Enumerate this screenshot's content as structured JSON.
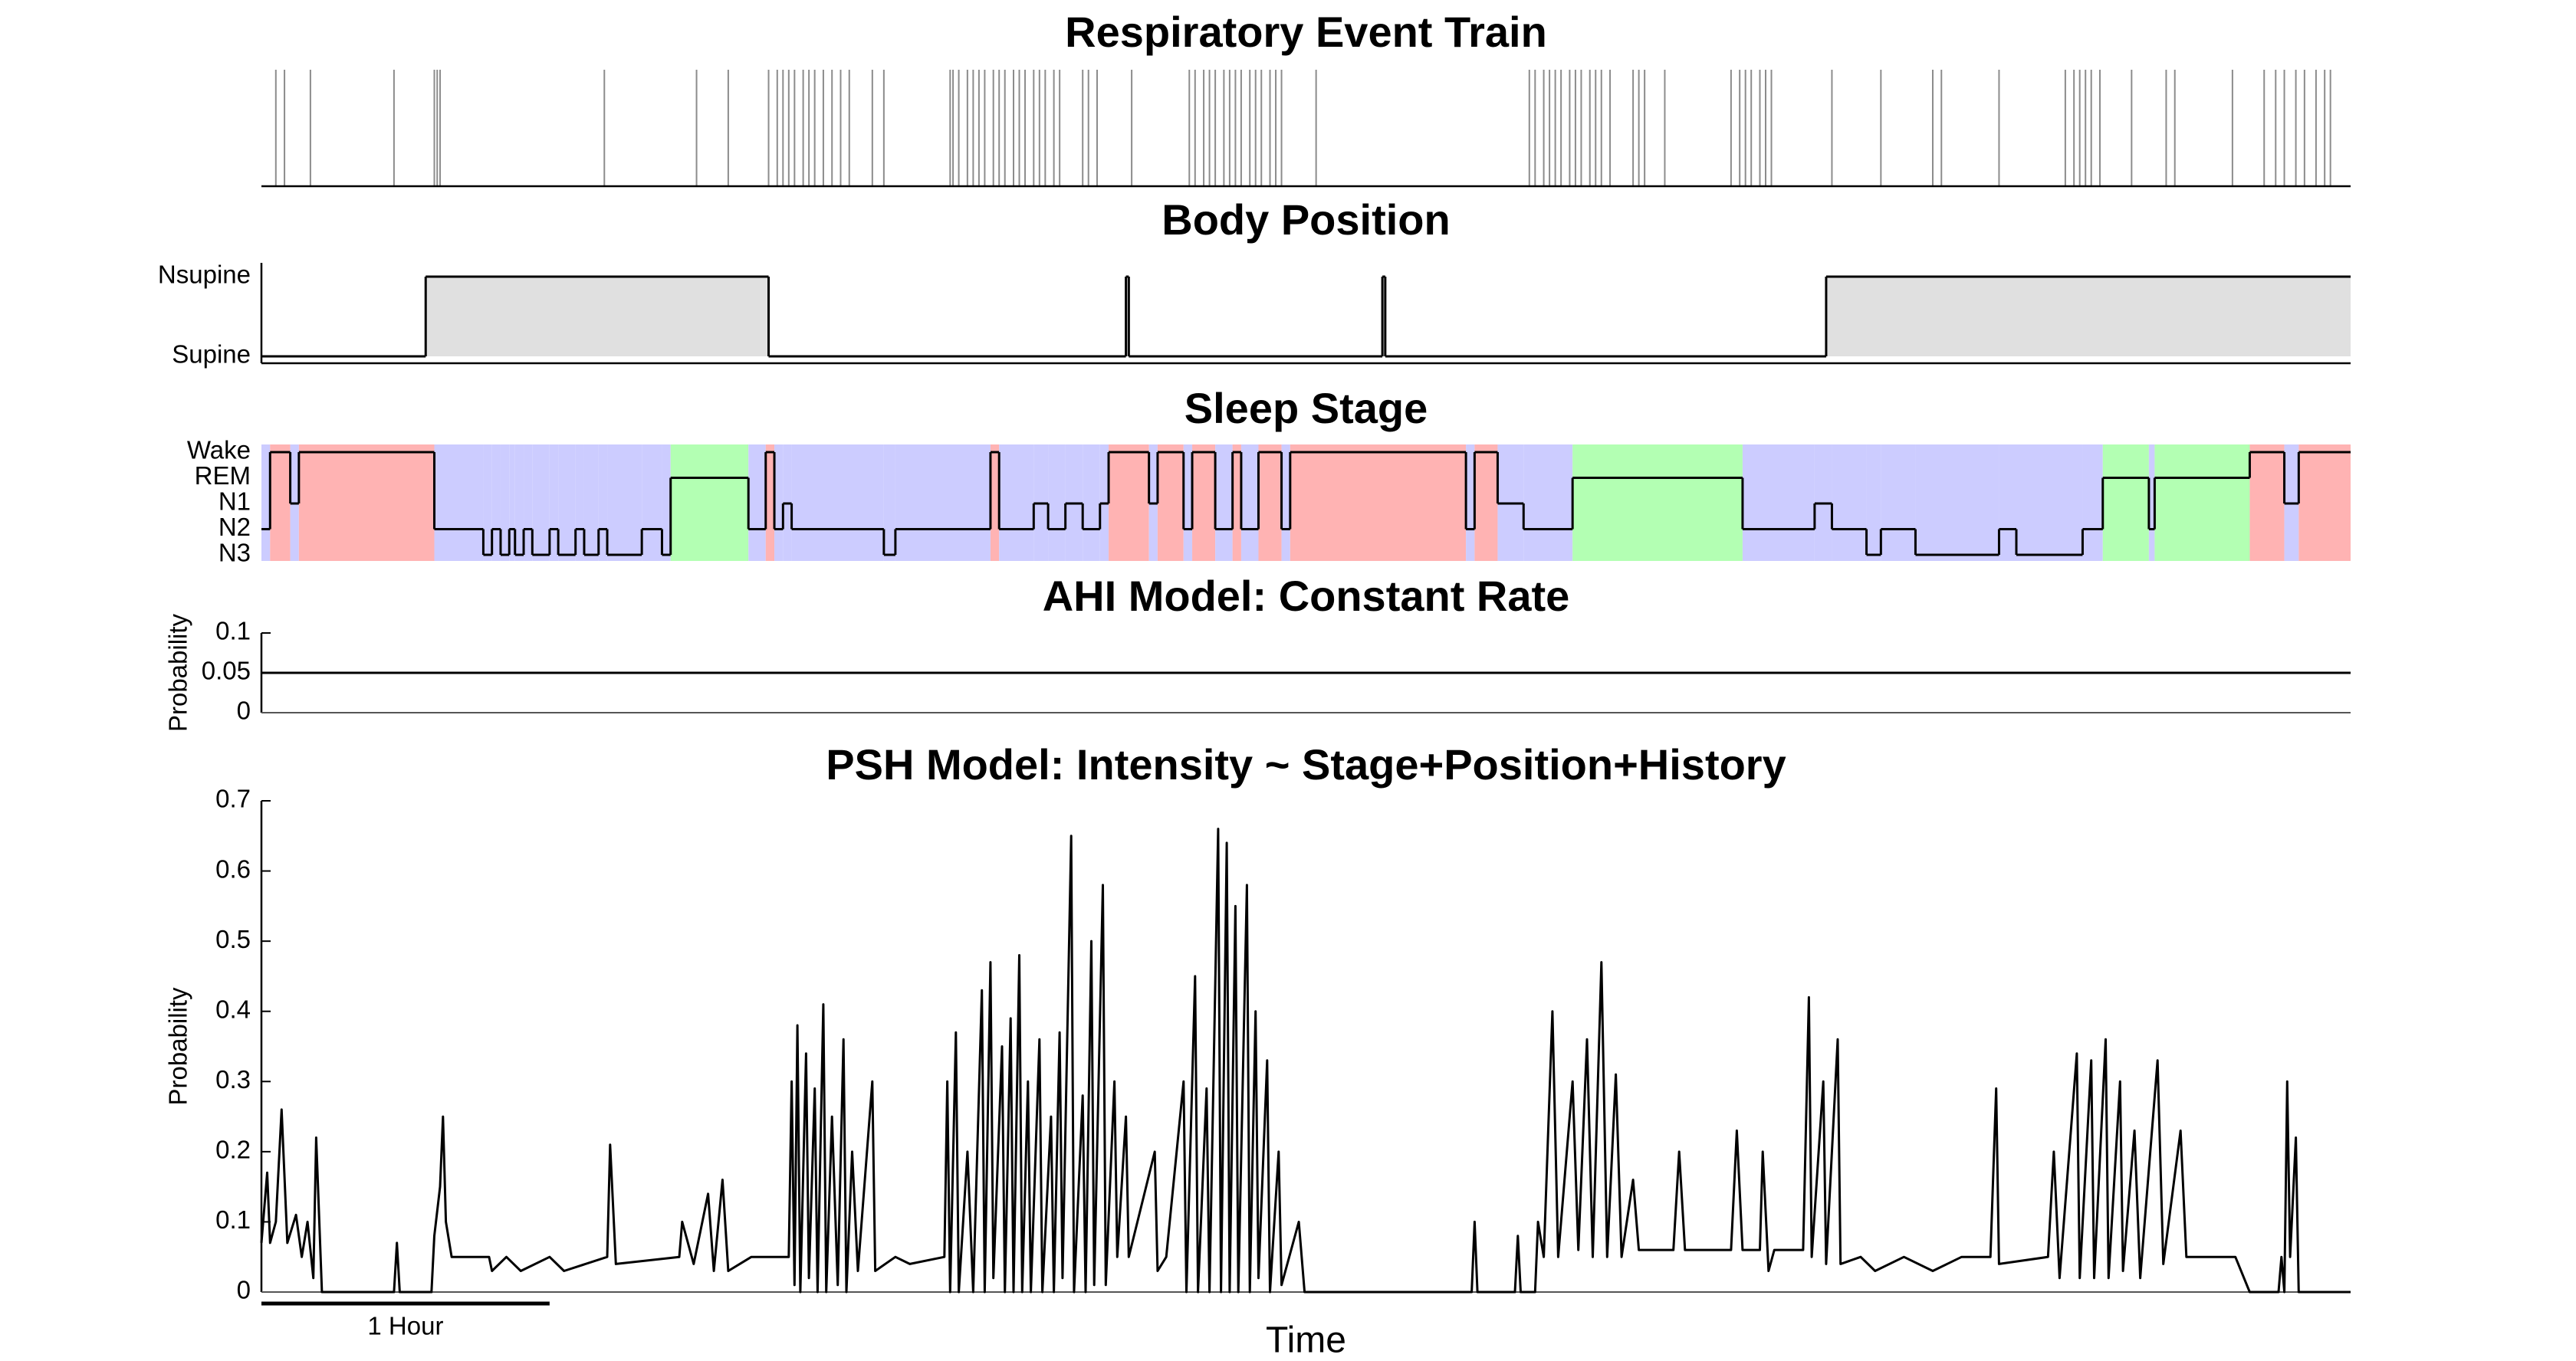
{
  "chart_data": [
    {
      "type": "event",
      "title": "Respiratory Event Train",
      "xlim": [
        0,
        7.25
      ],
      "color": "#8c8c8c",
      "x": [
        0.05,
        0.08,
        0.17,
        0.46,
        0.6,
        0.61,
        0.62,
        1.19,
        1.51,
        1.62,
        1.76,
        1.79,
        1.81,
        1.83,
        1.85,
        1.88,
        1.9,
        1.92,
        1.95,
        1.98,
        2.01,
        2.04,
        2.12,
        2.16,
        2.39,
        2.4,
        2.42,
        2.45,
        2.47,
        2.49,
        2.51,
        2.54,
        2.56,
        2.58,
        2.61,
        2.63,
        2.65,
        2.68,
        2.7,
        2.72,
        2.75,
        2.77,
        2.85,
        2.87,
        2.9,
        3.02,
        3.22,
        3.24,
        3.27,
        3.29,
        3.31,
        3.34,
        3.36,
        3.38,
        3.4,
        3.43,
        3.45,
        3.47,
        3.5,
        3.52,
        3.54,
        3.66,
        4.4,
        4.42,
        4.45,
        4.47,
        4.49,
        4.51,
        4.54,
        4.56,
        4.58,
        4.61,
        4.63,
        4.65,
        4.68,
        4.76,
        4.78,
        4.8,
        4.87,
        5.1,
        5.13,
        5.15,
        5.17,
        5.2,
        5.22,
        5.24,
        5.45,
        5.62,
        5.8,
        5.83,
        6.03,
        6.26,
        6.29,
        6.31,
        6.33,
        6.35,
        6.38,
        6.49,
        6.61,
        6.64,
        6.84,
        6.95,
        6.99,
        7.02,
        7.06,
        7.09,
        7.13,
        7.16,
        7.18
      ]
    },
    {
      "type": "step",
      "title": "Body Position",
      "y_categories": [
        "Supine",
        "Nsupine"
      ],
      "xlim": [
        0,
        7.25
      ],
      "color": "#000000",
      "fill_color": "#e0e0e0",
      "x": [
        0,
        0.57,
        1.76,
        3.0,
        3.01,
        3.89,
        3.9,
        5.43
      ],
      "values": [
        0,
        1,
        0,
        1,
        0,
        1,
        0,
        1
      ]
    },
    {
      "type": "stage",
      "title": "Sleep Stage",
      "y_categories": [
        "N3",
        "N2",
        "N1",
        "REM",
        "Wake"
      ],
      "stage_colors": [
        "#ccccff",
        "#ccccff",
        "#ccccff",
        "#b3ffb3",
        "#ffb3b3"
      ],
      "xlim": [
        0,
        7.25
      ],
      "color": "#000000",
      "x": [
        0,
        0.03,
        0.1,
        0.13,
        0.6,
        0.77,
        0.8,
        0.83,
        0.86,
        0.88,
        0.91,
        0.94,
        1.0,
        1.03,
        1.09,
        1.12,
        1.17,
        1.2,
        1.32,
        1.39,
        1.42,
        1.69,
        1.75,
        1.78,
        1.81,
        1.84,
        2.16,
        2.2,
        2.53,
        2.56,
        2.68,
        2.73,
        2.79,
        2.85,
        2.91,
        2.94,
        3.08,
        3.11,
        3.2,
        3.23,
        3.31,
        3.37,
        3.4,
        3.46,
        3.54,
        3.57,
        4.18,
        4.21,
        4.29,
        4.38,
        4.55,
        5.14,
        5.39,
        5.45,
        5.57,
        5.62,
        5.74,
        6.03,
        6.09,
        6.32,
        6.39,
        6.55,
        6.57,
        6.9,
        7.02,
        7.07
      ],
      "values": [
        1,
        4,
        2,
        4,
        1,
        0,
        1,
        0,
        1,
        0,
        1,
        0,
        1,
        0,
        1,
        0,
        1,
        0,
        1,
        0,
        3,
        1,
        4,
        1,
        2,
        1,
        0,
        1,
        4,
        1,
        2,
        1,
        2,
        1,
        2,
        4,
        2,
        4,
        1,
        4,
        1,
        4,
        1,
        4,
        1,
        4,
        1,
        4,
        2,
        1,
        3,
        1,
        2,
        1,
        0,
        1,
        0,
        1,
        0,
        1,
        3,
        1,
        3,
        4,
        2,
        4
      ]
    },
    {
      "type": "line",
      "title": "AHI Model: Constant Rate",
      "ylabel": "Probability",
      "xlim": [
        0,
        7.25
      ],
      "ylim": [
        0,
        0.1
      ],
      "yticks": [
        0,
        0.05,
        0.1
      ],
      "color": "#000000",
      "x": [
        0,
        7.25
      ],
      "values": [
        0.05,
        0.05
      ]
    },
    {
      "type": "line",
      "title": "PSH Model: Intensity ~ Stage+Position+History",
      "ylabel": "Probability",
      "xlabel": "Time",
      "xlim": [
        0,
        7.25
      ],
      "ylim": [
        0,
        0.7
      ],
      "yticks": [
        0,
        0.1,
        0.2,
        0.3,
        0.4,
        0.5,
        0.6,
        0.7
      ],
      "color": "#000000",
      "scale_bar": {
        "label": "1 Hour",
        "length": 1
      },
      "x": [
        0,
        0.02,
        0.03,
        0.05,
        0.07,
        0.09,
        0.12,
        0.14,
        0.16,
        0.18,
        0.19,
        0.21,
        0.46,
        0.47,
        0.48,
        0.59,
        0.6,
        0.62,
        0.63,
        0.64,
        0.66,
        0.79,
        0.8,
        0.85,
        0.9,
        1.0,
        1.05,
        1.2,
        1.21,
        1.23,
        1.45,
        1.46,
        1.5,
        1.55,
        1.57,
        1.6,
        1.62,
        1.7,
        1.83,
        1.84,
        1.85,
        1.86,
        1.87,
        1.89,
        1.9,
        1.92,
        1.93,
        1.95,
        1.96,
        1.98,
        2.0,
        2.02,
        2.03,
        2.05,
        2.07,
        2.12,
        2.13,
        2.2,
        2.25,
        2.37,
        2.38,
        2.39,
        2.41,
        2.42,
        2.45,
        2.47,
        2.5,
        2.51,
        2.53,
        2.54,
        2.57,
        2.58,
        2.6,
        2.61,
        2.63,
        2.64,
        2.66,
        2.67,
        2.7,
        2.71,
        2.74,
        2.75,
        2.77,
        2.78,
        2.81,
        2.82,
        2.85,
        2.86,
        2.88,
        2.89,
        2.92,
        2.93,
        2.96,
        2.97,
        3.0,
        3.01,
        3.1,
        3.11,
        3.14,
        3.2,
        3.21,
        3.24,
        3.25,
        3.28,
        3.29,
        3.32,
        3.33,
        3.35,
        3.36,
        3.38,
        3.39,
        3.42,
        3.43,
        3.45,
        3.46,
        3.49,
        3.5,
        3.53,
        3.54,
        3.6,
        3.62,
        4.2,
        4.21,
        4.22,
        4.35,
        4.36,
        4.37,
        4.42,
        4.43,
        4.45,
        4.48,
        4.5,
        4.55,
        4.57,
        4.6,
        4.62,
        4.65,
        4.67,
        4.7,
        4.72,
        4.76,
        4.78,
        4.9,
        4.92,
        4.94,
        5.1,
        5.12,
        5.14,
        5.2,
        5.21,
        5.23,
        5.25,
        5.35,
        5.37,
        5.38,
        5.42,
        5.43,
        5.47,
        5.48,
        5.55,
        5.6,
        5.7,
        5.8,
        5.9,
        6.0,
        6.02,
        6.03,
        6.2,
        6.22,
        6.24,
        6.3,
        6.31,
        6.35,
        6.36,
        6.4,
        6.41,
        6.45,
        6.46,
        6.5,
        6.52,
        6.58,
        6.6,
        6.66,
        6.68,
        6.85,
        6.9,
        7.0,
        7.01,
        7.02,
        7.03,
        7.04,
        7.06,
        7.07,
        7.25
      ],
      "values": [
        0.07,
        0.17,
        0.07,
        0.1,
        0.26,
        0.07,
        0.11,
        0.05,
        0.1,
        0.02,
        0.22,
        0,
        0,
        0.07,
        0,
        0,
        0.08,
        0.15,
        0.25,
        0.1,
        0.05,
        0.05,
        0.03,
        0.05,
        0.03,
        0.05,
        0.03,
        0.05,
        0.21,
        0.04,
        0.05,
        0.1,
        0.04,
        0.14,
        0.03,
        0.16,
        0.03,
        0.05,
        0.05,
        0.3,
        0.01,
        0.38,
        0,
        0.34,
        0.02,
        0.29,
        0,
        0.41,
        0,
        0.25,
        0.01,
        0.36,
        0,
        0.2,
        0.03,
        0.3,
        0.03,
        0.05,
        0.04,
        0.05,
        0.3,
        0,
        0.37,
        0,
        0.2,
        0,
        0.43,
        0,
        0.47,
        0.02,
        0.35,
        0,
        0.39,
        0,
        0.48,
        0,
        0.3,
        0,
        0.36,
        0,
        0.25,
        0,
        0.37,
        0.02,
        0.65,
        0,
        0.28,
        0,
        0.5,
        0.01,
        0.58,
        0.01,
        0.3,
        0.05,
        0.25,
        0.05,
        0.2,
        0.03,
        0.05,
        0.3,
        0,
        0.45,
        0,
        0.29,
        0,
        0.66,
        0,
        0.64,
        0,
        0.55,
        0,
        0.58,
        0,
        0.4,
        0.02,
        0.33,
        0,
        0.2,
        0.01,
        0.1,
        0,
        0,
        0.1,
        0,
        0,
        0.08,
        0,
        0,
        0.1,
        0.05,
        0.4,
        0.05,
        0.3,
        0.06,
        0.36,
        0.05,
        0.47,
        0.05,
        0.31,
        0.05,
        0.16,
        0.06,
        0.06,
        0.2,
        0.06,
        0.06,
        0.23,
        0.06,
        0.06,
        0.2,
        0.03,
        0.06,
        0.06,
        0.42,
        0.05,
        0.3,
        0.04,
        0.36,
        0.04,
        0.05,
        0.03,
        0.05,
        0.03,
        0.05,
        0.05,
        0.29,
        0.04,
        0.05,
        0.2,
        0.02,
        0.34,
        0.02,
        0.33,
        0.02,
        0.36,
        0.02,
        0.3,
        0.03,
        0.23,
        0.02,
        0.33,
        0.04,
        0.23,
        0.05,
        0.05,
        0,
        0,
        0.05,
        0,
        0.3,
        0.05,
        0.22,
        0,
        0
      ]
    }
  ]
}
